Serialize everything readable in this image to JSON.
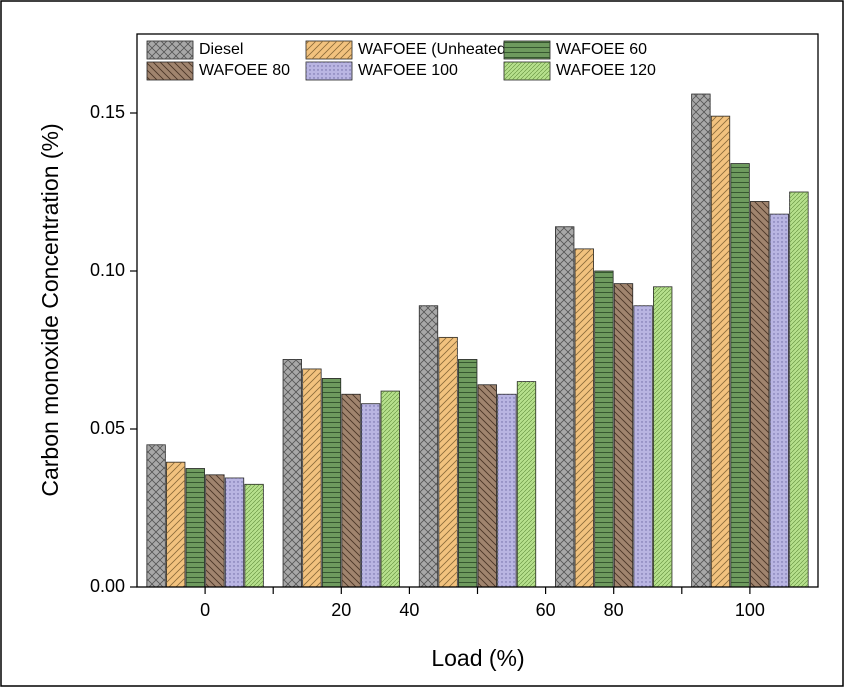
{
  "chart_data": {
    "type": "bar",
    "xlabel": "Load (%)",
    "ylabel": "Carbon monoxide Concentration (%)",
    "categories": [
      "0",
      null,
      "20",
      "40",
      null,
      "60",
      "80",
      null,
      "100"
    ],
    "series": [
      {
        "name": "Diesel",
        "color": "#a8a8a8",
        "values": [
          0.045,
          null,
          0.072,
          null,
          0.089,
          null,
          0.114,
          null,
          0.156
        ]
      },
      {
        "name": "WAFOEE (Unheated)",
        "color": "#f2c27e",
        "values": [
          0.0395,
          null,
          0.069,
          null,
          0.079,
          null,
          0.107,
          null,
          0.149
        ]
      },
      {
        "name": "WAFOEE 60",
        "color": "#6e9a5e",
        "values": [
          0.0375,
          null,
          0.066,
          null,
          0.072,
          null,
          0.1,
          null,
          0.134
        ]
      },
      {
        "name": "WAFOEE 80",
        "color": "#a0846e",
        "values": [
          0.0355,
          null,
          0.061,
          null,
          0.064,
          null,
          0.096,
          null,
          0.122
        ]
      },
      {
        "name": "WAFOEE 100",
        "color": "#b9b5e2",
        "values": [
          0.0345,
          null,
          0.058,
          null,
          0.061,
          null,
          0.089,
          null,
          0.118
        ]
      },
      {
        "name": "WAFOEE 120",
        "color": "#b6e08c",
        "values": [
          0.0325,
          null,
          0.062,
          null,
          0.065,
          null,
          0.095,
          null,
          0.125
        ]
      }
    ],
    "ylim": [
      0,
      0.175
    ],
    "yticks": [
      {
        "value": 0,
        "label": "0.00"
      },
      0.05,
      {
        "value": 0.1,
        "label": "0.10"
      },
      0.15
    ],
    "legend": "upper left"
  }
}
